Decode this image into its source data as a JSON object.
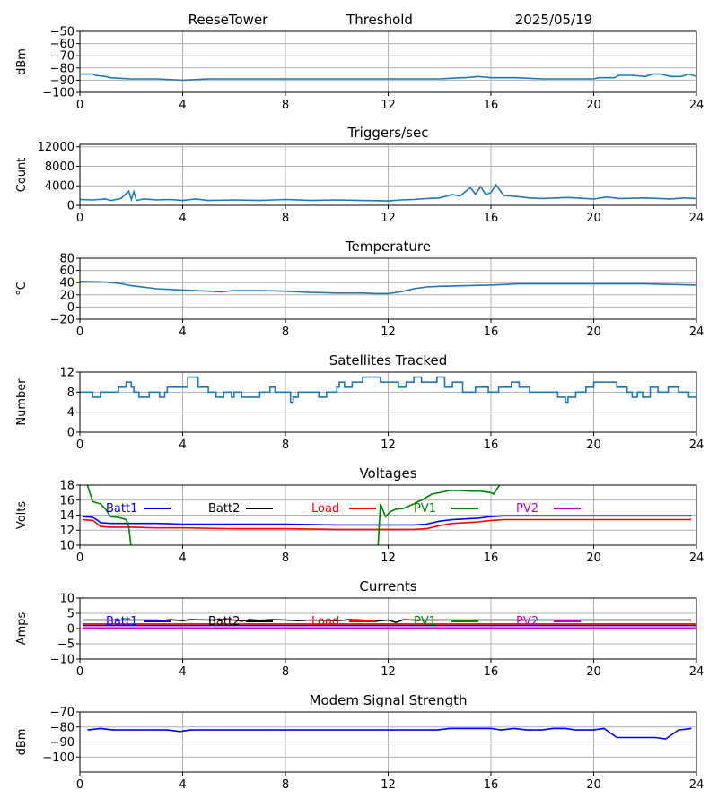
{
  "header": {
    "station": "ReeseTower",
    "mode": "Threshold",
    "date": "2025/05/19"
  },
  "chart_data": [
    {
      "type": "line",
      "title": "",
      "xlabel": "",
      "ylabel": "dBm",
      "xlim": [
        0,
        24
      ],
      "ylim": [
        -100,
        -50
      ],
      "xticks": [
        0,
        4,
        8,
        12,
        16,
        20,
        24
      ],
      "yticks": [
        -100,
        -90,
        -80,
        -70,
        -60,
        -50
      ],
      "grid": true,
      "series": [
        {
          "color": "#1f77b4",
          "x": [
            0,
            0.3,
            0.5,
            0.6,
            1,
            1.2,
            2,
            3,
            4,
            5,
            6,
            7,
            8,
            9,
            10,
            11,
            12,
            13,
            14,
            14.8,
            15,
            15.5,
            16,
            17,
            18,
            19,
            20,
            20.2,
            20.8,
            21,
            21.5,
            22,
            22.3,
            22.6,
            23,
            23.4,
            23.7,
            24
          ],
          "y": [
            -85,
            -85,
            -85,
            -86,
            -87,
            -88,
            -89,
            -89,
            -90,
            -89,
            -89,
            -89,
            -89,
            -89,
            -89,
            -89,
            -89,
            -89,
            -89,
            -88,
            -88,
            -87,
            -88,
            -88,
            -89,
            -89,
            -89,
            -88,
            -88,
            -86,
            -86,
            -87,
            -85,
            -85,
            -87,
            -87,
            -85,
            -87
          ]
        }
      ]
    },
    {
      "type": "line",
      "title": "Triggers/sec",
      "xlabel": "",
      "ylabel": "Count",
      "xlim": [
        0,
        24
      ],
      "ylim": [
        0,
        12500
      ],
      "xticks": [
        0,
        4,
        8,
        12,
        16,
        20,
        24
      ],
      "yticks": [
        0,
        4000,
        8000,
        12000
      ],
      "grid": true,
      "series": [
        {
          "color": "#1f77b4",
          "x": [
            0,
            0.5,
            1,
            1.2,
            1.6,
            1.9,
            2,
            2.1,
            2.2,
            2.5,
            3,
            3.5,
            4,
            4.5,
            5,
            6,
            7,
            8,
            9,
            10,
            11,
            12,
            12.5,
            13,
            13.5,
            14,
            14.5,
            14.8,
            15,
            15.2,
            15.4,
            15.6,
            15.8,
            16,
            16.2,
            16.5,
            17,
            17.5,
            18,
            19,
            20,
            20.5,
            21,
            22,
            23,
            23.5,
            24
          ],
          "y": [
            1200,
            1100,
            1300,
            1000,
            1400,
            2900,
            1200,
            2800,
            1000,
            1300,
            1100,
            1200,
            1000,
            1300,
            1000,
            1100,
            1000,
            1200,
            1000,
            1100,
            1000,
            900,
            1100,
            1200,
            1400,
            1500,
            2200,
            1900,
            2800,
            3600,
            2300,
            3800,
            2200,
            2600,
            4200,
            2000,
            1800,
            1500,
            1400,
            1600,
            1300,
            1700,
            1400,
            1500,
            1300,
            1500,
            1400
          ]
        }
      ]
    },
    {
      "type": "line",
      "title": "Temperature",
      "xlabel": "",
      "ylabel": "°C",
      "xlim": [
        0,
        24
      ],
      "ylim": [
        -20,
        80
      ],
      "xticks": [
        0,
        4,
        8,
        12,
        16,
        20,
        24
      ],
      "yticks": [
        -20,
        0,
        20,
        40,
        60,
        80
      ],
      "grid": true,
      "series": [
        {
          "color": "#1f77b4",
          "x": [
            0,
            1,
            1.5,
            2,
            3,
            4,
            5,
            5.5,
            6,
            7,
            8,
            9,
            10,
            11,
            11.5,
            12,
            12.5,
            13,
            13.5,
            14,
            15,
            16,
            17,
            18,
            19,
            20,
            21,
            22,
            23,
            24
          ],
          "y": [
            42,
            41,
            39,
            35,
            30,
            28,
            26,
            25,
            27,
            27,
            26,
            24,
            23,
            23,
            22,
            22,
            25,
            30,
            33,
            34,
            35,
            36,
            38,
            38,
            38,
            38,
            38,
            38,
            37,
            36
          ]
        }
      ]
    },
    {
      "type": "line",
      "title": "Satellites Tracked",
      "xlabel": "",
      "ylabel": "Number",
      "xlim": [
        0,
        24
      ],
      "ylim": [
        0,
        12
      ],
      "xticks": [
        0,
        4,
        8,
        12,
        16,
        20,
        24
      ],
      "yticks": [
        0,
        4,
        8,
        12
      ],
      "grid": true,
      "series": [
        {
          "color": "#1f77b4",
          "step": true,
          "x": [
            0,
            0.3,
            0.5,
            0.8,
            1.5,
            1.7,
            1.8,
            2,
            2.1,
            2.3,
            2.7,
            3,
            3.1,
            3.3,
            3.4,
            3.7,
            4,
            4.2,
            4.6,
            5,
            5.3,
            5.6,
            5.7,
            5.9,
            6,
            6.1,
            6.3,
            6.5,
            7,
            7.4,
            7.6,
            8,
            8.2,
            8.3,
            8.5,
            9,
            9.3,
            9.6,
            10,
            10.1,
            10.3,
            10.6,
            10.8,
            11,
            11.4,
            11.7,
            12,
            12.4,
            12.7,
            13,
            13.3,
            13.5,
            13.9,
            14.2,
            14.5,
            14.9,
            15.4,
            15.6,
            15.9,
            16.3,
            16.5,
            16.8,
            17.1,
            17.5,
            18,
            18.6,
            18.9,
            19,
            19.3,
            19.7,
            20,
            20.5,
            20.9,
            21.3,
            21.5,
            21.7,
            21.9,
            22.2,
            22.5,
            22.9,
            23.3,
            23.7,
            24
          ],
          "y": [
            8,
            8,
            7,
            8,
            9,
            9,
            10,
            9,
            8,
            7,
            8,
            8,
            7,
            8,
            9,
            9,
            9,
            11,
            9,
            8,
            7,
            8,
            8,
            7,
            8,
            8,
            7,
            7,
            8,
            9,
            8,
            8,
            6,
            7,
            8,
            8,
            7,
            8,
            9,
            10,
            9,
            10,
            10,
            11,
            11,
            10,
            10,
            9,
            10,
            11,
            10,
            10,
            11,
            9,
            10,
            8,
            9,
            9,
            8,
            9,
            9,
            10,
            9,
            8,
            8,
            7,
            6,
            7,
            8,
            9,
            10,
            10,
            9,
            8,
            7,
            8,
            7,
            9,
            8,
            9,
            8,
            7,
            8
          ]
        }
      ]
    },
    {
      "type": "line",
      "title": "Voltages",
      "xlabel": "",
      "ylabel": "Volts",
      "xlim": [
        0,
        24
      ],
      "ylim": [
        10,
        18
      ],
      "xticks": [
        0,
        4,
        8,
        12,
        16,
        20,
        24
      ],
      "yticks": [
        10,
        12,
        14,
        16,
        18
      ],
      "grid": true,
      "legend": "top, single row",
      "series": [
        {
          "name": "Batt1",
          "color": "#0000ff",
          "x": [
            0.1,
            0.5,
            0.7,
            0.8,
            1.2,
            2,
            3,
            4,
            6,
            8,
            10,
            12,
            13,
            13.5,
            14,
            14.5,
            15,
            15.5,
            16,
            16.5,
            17,
            18,
            20,
            22,
            23.8
          ],
          "y": [
            13.8,
            13.7,
            13.3,
            13.0,
            12.9,
            12.9,
            12.9,
            12.8,
            12.8,
            12.8,
            12.7,
            12.7,
            12.7,
            12.8,
            13.2,
            13.4,
            13.5,
            13.6,
            13.8,
            13.9,
            13.9,
            13.9,
            13.9,
            13.9,
            13.9
          ]
        },
        {
          "name": "Batt2",
          "color": "#000000",
          "x": [],
          "y": []
        },
        {
          "name": "Load",
          "color": "#ff0000",
          "x": [
            0.1,
            0.5,
            0.7,
            0.8,
            1.2,
            2,
            3,
            4,
            6,
            8,
            10,
            12,
            13,
            13.5,
            14,
            14.5,
            15,
            15.5,
            16,
            16.5,
            17,
            18,
            20,
            22,
            23.8
          ],
          "y": [
            13.4,
            13.3,
            12.8,
            12.5,
            12.4,
            12.4,
            12.3,
            12.3,
            12.2,
            12.2,
            12.1,
            12.1,
            12.1,
            12.2,
            12.6,
            12.9,
            13.0,
            13.1,
            13.3,
            13.4,
            13.4,
            13.4,
            13.4,
            13.4,
            13.4
          ]
        },
        {
          "name": "PV1",
          "color": "#008000",
          "x": [
            0.2,
            0.5,
            0.8,
            1,
            1.2,
            1.5,
            1.8,
            1.9,
            2.0,
            11.6,
            11.7,
            11.9,
            12.1,
            12.3,
            12.6,
            13,
            13.4,
            13.7,
            14,
            14.4,
            14.8,
            15.2,
            15.6,
            16,
            16.1,
            16.3,
            16.4
          ],
          "y": [
            19,
            15.8,
            15.5,
            14.8,
            13.8,
            13.7,
            13.4,
            12.5,
            9.5,
            9.5,
            15.5,
            13.8,
            14.5,
            14.8,
            14.9,
            15.5,
            16.2,
            16.8,
            17.0,
            17.3,
            17.3,
            17.2,
            17.2,
            17.0,
            16.8,
            17.8,
            18.4
          ]
        },
        {
          "name": "PV2",
          "color": "#bf00bf",
          "x": [],
          "y": []
        }
      ]
    },
    {
      "type": "line",
      "title": "Currents",
      "xlabel": "",
      "ylabel": "Amps",
      "xlim": [
        0,
        24
      ],
      "ylim": [
        -10,
        10
      ],
      "xticks": [
        0,
        4,
        8,
        12,
        16,
        20,
        24
      ],
      "yticks": [
        -10,
        -5,
        0,
        5,
        10
      ],
      "grid": true,
      "legend": "top, single row",
      "series": [
        {
          "name": "Batt1",
          "color": "#0000ff",
          "x": [
            0.1,
            24
          ],
          "y": [
            1.0,
            1.0
          ]
        },
        {
          "name": "Batt2",
          "color": "#000000",
          "x": [
            0.1,
            1,
            2,
            3,
            3.2,
            3.5,
            4,
            4.3,
            5,
            5.5,
            6,
            6.3,
            6.6,
            7,
            7.5,
            8,
            8.5,
            9,
            9.5,
            10,
            10.5,
            11,
            11.5,
            12,
            12.3,
            12.6,
            13,
            14,
            16,
            18,
            20,
            22,
            23.8
          ],
          "y": [
            2.8,
            2.8,
            2.8,
            2.8,
            2.4,
            2.9,
            2.6,
            2.9,
            2.8,
            2.9,
            2.8,
            2.4,
            2.9,
            2.7,
            2.9,
            2.8,
            2.6,
            2.8,
            2.7,
            2.6,
            2.9,
            2.8,
            2.4,
            2.8,
            2.0,
            2.9,
            2.8,
            2.8,
            2.8,
            2.8,
            2.8,
            2.8,
            2.8
          ]
        },
        {
          "name": "Load",
          "color": "#ff0000",
          "x": [
            0.1,
            24
          ],
          "y": [
            1.5,
            1.5
          ]
        },
        {
          "name": "PV1",
          "color": "#008000",
          "x": [],
          "y": []
        },
        {
          "name": "PV2",
          "color": "#bf00bf",
          "x": [
            0.1,
            24
          ],
          "y": [
            0.2,
            0.2
          ]
        }
      ]
    },
    {
      "type": "line",
      "title": "Modem Signal Strength",
      "xlabel": "",
      "ylabel": "dBm",
      "xlim": [
        0,
        24
      ],
      "ylim": [
        -110,
        -70
      ],
      "xticks": [
        0,
        4,
        8,
        12,
        16,
        20,
        24
      ],
      "yticks": [
        -100,
        -90,
        -80,
        -70
      ],
      "grid": true,
      "series": [
        {
          "color": "#0000ff",
          "x": [
            0.3,
            0.8,
            1.3,
            2,
            3,
            3.4,
            3.9,
            4.3,
            5,
            6,
            7,
            8,
            9,
            10,
            11,
            12,
            13,
            13.9,
            14.4,
            15,
            16,
            16.4,
            16.9,
            17.4,
            18,
            18.4,
            18.9,
            19.3,
            20,
            20.4,
            20.9,
            21.4,
            22,
            22.4,
            22.8,
            23.3,
            23.8
          ],
          "y": [
            -82,
            -81,
            -82,
            -82,
            -82,
            -82,
            -83,
            -82,
            -82,
            -82,
            -82,
            -82,
            -82,
            -82,
            -82,
            -82,
            -82,
            -82,
            -81,
            -81,
            -81,
            -82,
            -81,
            -82,
            -82,
            -81,
            -81,
            -82,
            -82,
            -81,
            -87,
            -87,
            -87,
            -87,
            -88,
            -82,
            -81
          ]
        }
      ]
    }
  ]
}
